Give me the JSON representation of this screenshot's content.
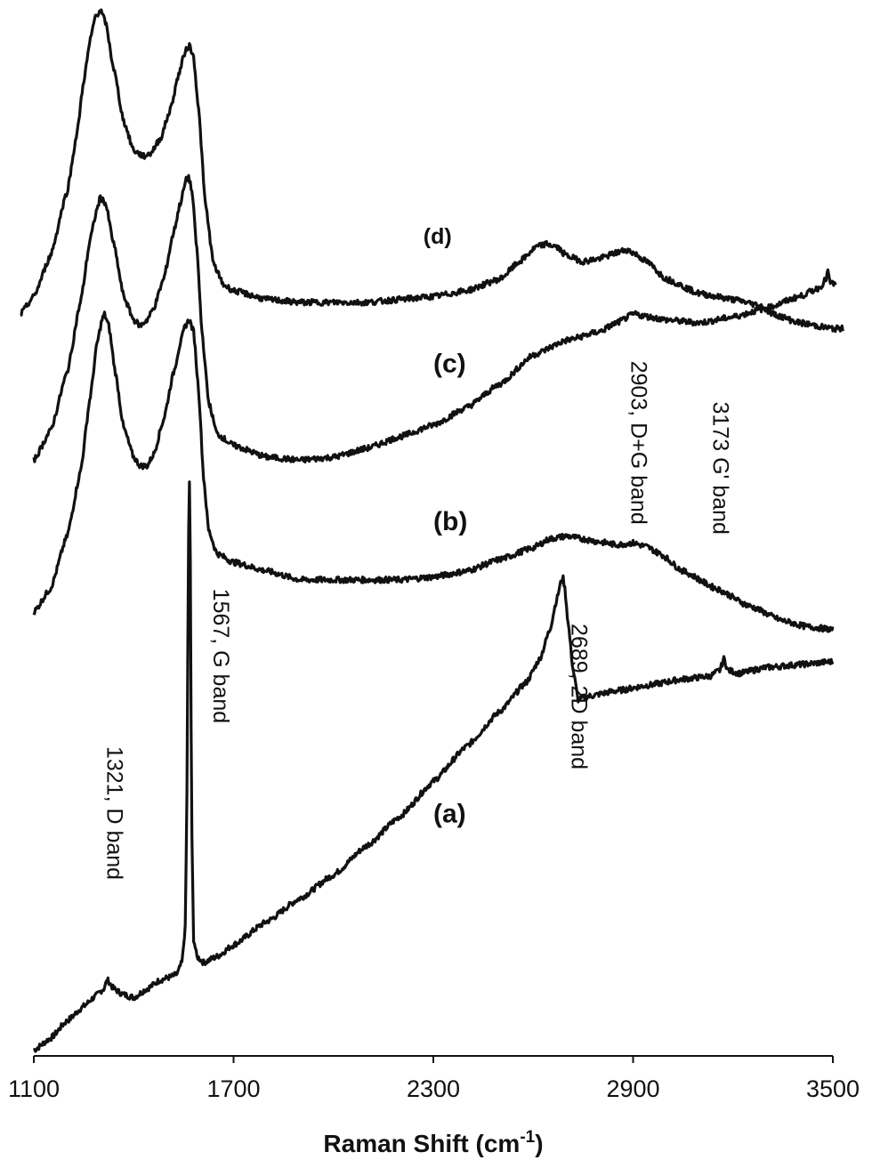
{
  "chart_data": {
    "type": "line",
    "title": "",
    "xlabel": "Raman Shift (cm",
    "xlabel_sup": "-1",
    "xlabel_close": ")",
    "ylabel": "",
    "xlim": [
      1100,
      3500
    ],
    "xticks": [
      1100,
      1700,
      2300,
      2900,
      3500
    ],
    "grid": false,
    "y_axis_shown": false,
    "series": [
      {
        "name": "(a)",
        "points": [
          [
            1100,
            0.01
          ],
          [
            1150,
            0.03
          ],
          [
            1200,
            0.06
          ],
          [
            1250,
            0.085
          ],
          [
            1280,
            0.1
          ],
          [
            1310,
            0.115
          ],
          [
            1321,
            0.13
          ],
          [
            1340,
            0.115
          ],
          [
            1370,
            0.105
          ],
          [
            1400,
            0.1
          ],
          [
            1440,
            0.115
          ],
          [
            1480,
            0.13
          ],
          [
            1510,
            0.135
          ],
          [
            1530,
            0.14
          ],
          [
            1545,
            0.16
          ],
          [
            1555,
            0.22
          ],
          [
            1560,
            0.45
          ],
          [
            1564,
            0.85
          ],
          [
            1567,
            1.0
          ],
          [
            1570,
            0.85
          ],
          [
            1574,
            0.4
          ],
          [
            1580,
            0.2
          ],
          [
            1590,
            0.17
          ],
          [
            1610,
            0.16
          ],
          [
            1650,
            0.17
          ],
          [
            1700,
            0.19
          ],
          [
            1800,
            0.23
          ],
          [
            1900,
            0.27
          ],
          [
            2000,
            0.31
          ],
          [
            2100,
            0.36
          ],
          [
            2200,
            0.41
          ],
          [
            2300,
            0.47
          ],
          [
            2400,
            0.53
          ],
          [
            2500,
            0.59
          ],
          [
            2580,
            0.64
          ],
          [
            2620,
            0.68
          ],
          [
            2650,
            0.73
          ],
          [
            2670,
            0.78
          ],
          [
            2683,
            0.81
          ],
          [
            2689,
            0.82
          ],
          [
            2695,
            0.8
          ],
          [
            2705,
            0.74
          ],
          [
            2720,
            0.66
          ],
          [
            2735,
            0.61
          ],
          [
            2760,
            0.615
          ],
          [
            2850,
            0.625
          ],
          [
            2950,
            0.635
          ],
          [
            3050,
            0.645
          ],
          [
            3130,
            0.65
          ],
          [
            3160,
            0.66
          ],
          [
            3173,
            0.68
          ],
          [
            3185,
            0.66
          ],
          [
            3220,
            0.655
          ],
          [
            3300,
            0.665
          ],
          [
            3400,
            0.67
          ],
          [
            3500,
            0.675
          ]
        ]
      },
      {
        "name": "(b)",
        "points": [
          [
            1100,
            0.76
          ],
          [
            1150,
            0.8
          ],
          [
            1200,
            0.89
          ],
          [
            1240,
            1.0
          ],
          [
            1270,
            1.13
          ],
          [
            1290,
            1.22
          ],
          [
            1305,
            1.26
          ],
          [
            1312,
            1.27
          ],
          [
            1325,
            1.25
          ],
          [
            1345,
            1.17
          ],
          [
            1370,
            1.075
          ],
          [
            1400,
            1.025
          ],
          [
            1420,
            1.01
          ],
          [
            1440,
            1.01
          ],
          [
            1460,
            1.03
          ],
          [
            1490,
            1.09
          ],
          [
            1520,
            1.17
          ],
          [
            1540,
            1.22
          ],
          [
            1555,
            1.25
          ],
          [
            1567,
            1.26
          ],
          [
            1580,
            1.24
          ],
          [
            1595,
            1.14
          ],
          [
            1610,
            0.99
          ],
          [
            1625,
            0.9
          ],
          [
            1650,
            0.86
          ],
          [
            1700,
            0.845
          ],
          [
            1800,
            0.83
          ],
          [
            1900,
            0.815
          ],
          [
            2000,
            0.815
          ],
          [
            2100,
            0.815
          ],
          [
            2200,
            0.815
          ],
          [
            2300,
            0.82
          ],
          [
            2400,
            0.83
          ],
          [
            2500,
            0.85
          ],
          [
            2600,
            0.87
          ],
          [
            2650,
            0.885
          ],
          [
            2700,
            0.89
          ],
          [
            2750,
            0.885
          ],
          [
            2800,
            0.88
          ],
          [
            2850,
            0.875
          ],
          [
            2900,
            0.878
          ],
          [
            2940,
            0.872
          ],
          [
            2980,
            0.86
          ],
          [
            3050,
            0.83
          ],
          [
            3150,
            0.8
          ],
          [
            3250,
            0.77
          ],
          [
            3350,
            0.745
          ],
          [
            3420,
            0.735
          ],
          [
            3500,
            0.73
          ]
        ]
      },
      {
        "name": "(c)",
        "points": [
          [
            1100,
            1.02
          ],
          [
            1150,
            1.07
          ],
          [
            1200,
            1.17
          ],
          [
            1240,
            1.29
          ],
          [
            1270,
            1.4
          ],
          [
            1290,
            1.45
          ],
          [
            1300,
            1.47
          ],
          [
            1315,
            1.46
          ],
          [
            1340,
            1.39
          ],
          [
            1370,
            1.3
          ],
          [
            1400,
            1.26
          ],
          [
            1420,
            1.25
          ],
          [
            1440,
            1.26
          ],
          [
            1460,
            1.28
          ],
          [
            1490,
            1.33
          ],
          [
            1520,
            1.41
          ],
          [
            1540,
            1.46
          ],
          [
            1558,
            1.5
          ],
          [
            1565,
            1.505
          ],
          [
            1575,
            1.48
          ],
          [
            1590,
            1.38
          ],
          [
            1605,
            1.24
          ],
          [
            1625,
            1.12
          ],
          [
            1650,
            1.065
          ],
          [
            1700,
            1.045
          ],
          [
            1800,
            1.025
          ],
          [
            1900,
            1.02
          ],
          [
            2000,
            1.025
          ],
          [
            2100,
            1.04
          ],
          [
            2200,
            1.06
          ],
          [
            2300,
            1.08
          ],
          [
            2400,
            1.11
          ],
          [
            2500,
            1.15
          ],
          [
            2600,
            1.2
          ],
          [
            2700,
            1.225
          ],
          [
            2800,
            1.24
          ],
          [
            2850,
            1.255
          ],
          [
            2903,
            1.27
          ],
          [
            2950,
            1.265
          ],
          [
            3000,
            1.26
          ],
          [
            3100,
            1.255
          ],
          [
            3200,
            1.265
          ],
          [
            3300,
            1.28
          ],
          [
            3400,
            1.3
          ],
          [
            3460,
            1.315
          ],
          [
            3480,
            1.33
          ],
          [
            3485,
            1.345
          ],
          [
            3490,
            1.325
          ],
          [
            3510,
            1.32
          ]
        ]
      },
      {
        "name": "(d)",
        "points": [
          [
            1060,
            1.27
          ],
          [
            1100,
            1.3
          ],
          [
            1150,
            1.37
          ],
          [
            1200,
            1.48
          ],
          [
            1230,
            1.58
          ],
          [
            1250,
            1.67
          ],
          [
            1270,
            1.74
          ],
          [
            1285,
            1.78
          ],
          [
            1300,
            1.79
          ],
          [
            1315,
            1.77
          ],
          [
            1340,
            1.69
          ],
          [
            1370,
            1.6
          ],
          [
            1400,
            1.55
          ],
          [
            1430,
            1.54
          ],
          [
            1450,
            1.545
          ],
          [
            1480,
            1.57
          ],
          [
            1510,
            1.62
          ],
          [
            1535,
            1.68
          ],
          [
            1555,
            1.72
          ],
          [
            1567,
            1.73
          ],
          [
            1580,
            1.71
          ],
          [
            1595,
            1.62
          ],
          [
            1615,
            1.46
          ],
          [
            1640,
            1.355
          ],
          [
            1670,
            1.32
          ],
          [
            1700,
            1.31
          ],
          [
            1800,
            1.295
          ],
          [
            1900,
            1.29
          ],
          [
            2000,
            1.29
          ],
          [
            2100,
            1.29
          ],
          [
            2200,
            1.295
          ],
          [
            2300,
            1.3
          ],
          [
            2400,
            1.31
          ],
          [
            2500,
            1.33
          ],
          [
            2560,
            1.36
          ],
          [
            2610,
            1.385
          ],
          [
            2640,
            1.39
          ],
          [
            2670,
            1.385
          ],
          [
            2700,
            1.37
          ],
          [
            2750,
            1.36
          ],
          [
            2800,
            1.365
          ],
          [
            2850,
            1.375
          ],
          [
            2880,
            1.38
          ],
          [
            2900,
            1.375
          ],
          [
            2940,
            1.36
          ],
          [
            3000,
            1.33
          ],
          [
            3100,
            1.305
          ],
          [
            3200,
            1.295
          ],
          [
            3280,
            1.285
          ],
          [
            3320,
            1.27
          ],
          [
            3400,
            1.255
          ],
          [
            3500,
            1.245
          ],
          [
            3530,
            1.245
          ]
        ]
      }
    ],
    "series_labels": [
      {
        "text": "(a)",
        "x": 2300,
        "y": 0.4
      },
      {
        "text": "(b)",
        "x": 2300,
        "y": 0.9
      },
      {
        "text": "(c)",
        "x": 2300,
        "y": 1.17
      },
      {
        "text": "(d)",
        "x": 2270,
        "y": 1.39
      }
    ],
    "annotations": [
      {
        "text": "1321, D band",
        "x": 1321,
        "y": 0.53,
        "rotation": 90
      },
      {
        "text": "1567, G band",
        "x": 1640,
        "y": 0.8,
        "rotation": 90
      },
      {
        "text": "2689, 2D band",
        "x": 2715,
        "y": 0.74,
        "rotation": 90
      },
      {
        "text": "2903, D+G band",
        "x": 2895,
        "y": 1.19,
        "rotation": 90
      },
      {
        "text": "3173 G' band",
        "x": 3140,
        "y": 1.12,
        "rotation": 90
      }
    ]
  }
}
